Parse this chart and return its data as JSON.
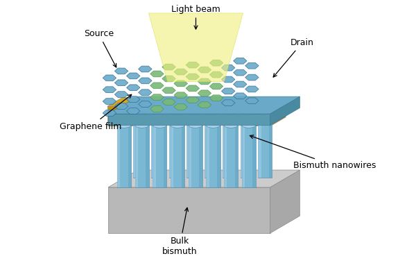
{
  "title": "",
  "background_color": "#ffffff",
  "colors": {
    "base_gray_top": "#cccccc",
    "base_gray_front": "#b8b8b8",
    "base_gray_right": "#a8a8a8",
    "nanowire_blue": "#7ab8d4",
    "nanowire_blue_dark": "#5a9ab8",
    "nanowire_blue_top": "#a8d0e8",
    "graphene_blue": "#6aaac8",
    "graphene_green": "#7ab87a",
    "electrode_gold_top": "#d4a820",
    "electrode_gold_front": "#c49010",
    "electrode_gold_right": "#b08010",
    "light_yellow": "#f0f080",
    "light_yellow_edge": "#d8d840"
  },
  "labels": {
    "source": "Source",
    "drain": "Drain",
    "light_beam": "Light beam",
    "graphene_film": "Graphene film",
    "bulk_bismuth": "Bulk\nbismuth",
    "bismuth_nanowires": "Bismuth nanowires"
  }
}
